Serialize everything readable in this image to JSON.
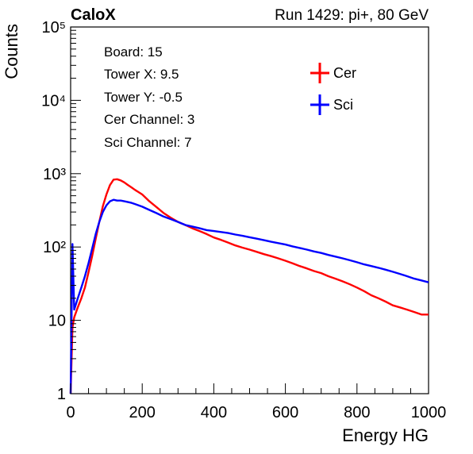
{
  "header": {
    "brand": "CaloX",
    "run_label": "Run 1429: pi+, 80 GeV"
  },
  "info": {
    "lines": [
      "Board: 15",
      "Tower X: 9.5",
      "Tower Y: -0.5",
      "Cer Channel: 3",
      "Sci Channel: 7"
    ]
  },
  "chart_data": {
    "type": "line",
    "xlabel": "Energy HG",
    "ylabel": "Counts",
    "xlim": [
      0,
      1000
    ],
    "ylim": [
      1,
      100000
    ],
    "yscale": "log",
    "x_ticks": [
      0,
      200,
      400,
      600,
      800,
      1000
    ],
    "y_ticks": [
      1,
      10,
      100,
      1000,
      10000,
      100000
    ],
    "y_tick_labels": [
      "1",
      "10",
      "10²",
      "10³",
      "10⁴",
      "10⁵"
    ],
    "legend_position": "top-right",
    "series": [
      {
        "name": "Cer",
        "color": "#ff0000",
        "x": [
          0,
          5,
          10,
          20,
          30,
          40,
          50,
          60,
          70,
          80,
          90,
          100,
          110,
          120,
          130,
          140,
          150,
          160,
          170,
          180,
          190,
          200,
          220,
          240,
          260,
          280,
          300,
          320,
          340,
          360,
          380,
          400,
          420,
          440,
          460,
          480,
          500,
          520,
          540,
          560,
          580,
          600,
          620,
          640,
          660,
          680,
          700,
          720,
          740,
          760,
          780,
          800,
          820,
          840,
          860,
          880,
          900,
          920,
          940,
          960,
          980,
          1000
        ],
        "y": [
          1,
          8,
          11,
          15,
          20,
          28,
          45,
          75,
          130,
          220,
          360,
          520,
          700,
          830,
          840,
          810,
          760,
          700,
          650,
          600,
          560,
          520,
          420,
          350,
          290,
          250,
          220,
          200,
          180,
          165,
          150,
          135,
          125,
          115,
          105,
          98,
          92,
          86,
          80,
          75,
          70,
          65,
          60,
          55,
          51,
          47,
          44,
          40,
          37,
          34,
          31,
          28,
          25,
          22,
          20,
          18,
          16,
          15,
          14,
          13,
          12,
          12
        ]
      },
      {
        "name": "Sci",
        "color": "#0000ff",
        "x": [
          0,
          5,
          10,
          20,
          30,
          40,
          50,
          60,
          70,
          80,
          90,
          100,
          110,
          120,
          130,
          140,
          150,
          160,
          170,
          180,
          190,
          200,
          220,
          240,
          260,
          280,
          300,
          320,
          340,
          360,
          380,
          400,
          420,
          440,
          460,
          480,
          500,
          520,
          540,
          560,
          580,
          600,
          620,
          640,
          660,
          680,
          700,
          720,
          740,
          760,
          780,
          800,
          820,
          840,
          860,
          880,
          900,
          920,
          940,
          960,
          980,
          1000
        ],
        "y": [
          1,
          110,
          14,
          20,
          28,
          40,
          60,
          95,
          150,
          220,
          300,
          370,
          420,
          440,
          430,
          430,
          420,
          410,
          400,
          385,
          370,
          355,
          320,
          290,
          260,
          240,
          220,
          200,
          190,
          180,
          170,
          165,
          160,
          155,
          148,
          142,
          136,
          130,
          124,
          118,
          113,
          108,
          102,
          97,
          92,
          87,
          83,
          78,
          74,
          70,
          66,
          62,
          58,
          55,
          52,
          49,
          46,
          43,
          40,
          37,
          35,
          33
        ]
      }
    ]
  }
}
